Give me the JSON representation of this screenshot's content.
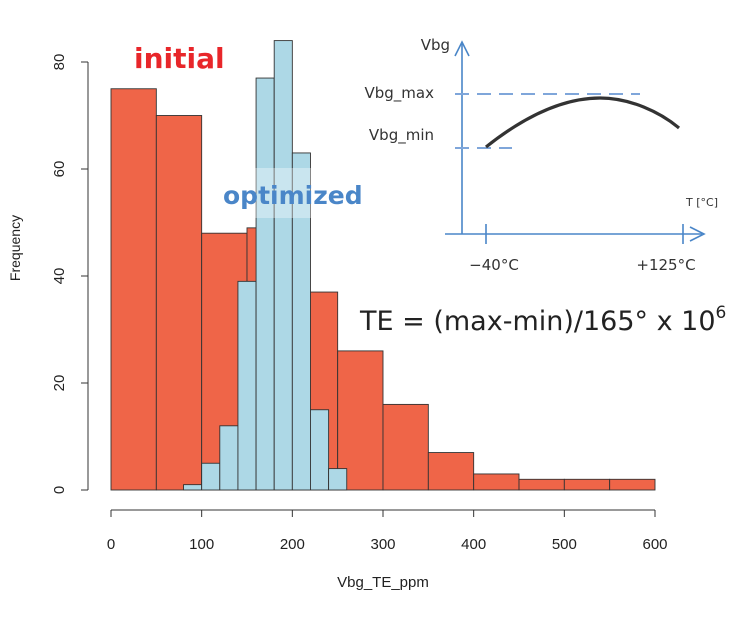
{
  "chart_data": {
    "type": "bar",
    "title": "",
    "xlabel": "Vbg_TE_ppm",
    "ylabel": "Frequency",
    "xlim": [
      0,
      600
    ],
    "ylim": [
      0,
      80
    ],
    "x_ticks": [
      0,
      100,
      200,
      300,
      400,
      500,
      600
    ],
    "y_ticks": [
      0,
      20,
      40,
      60,
      80
    ],
    "grid": false,
    "series": [
      {
        "name": "initial",
        "color": "#ef6548",
        "bins": [
          {
            "x0": 0,
            "x1": 50,
            "count": 75
          },
          {
            "x0": 50,
            "x1": 100,
            "count": 70
          },
          {
            "x0": 100,
            "x1": 150,
            "count": 48
          },
          {
            "x0": 150,
            "x1": 200,
            "count": 49
          },
          {
            "x0": 200,
            "x1": 250,
            "count": 37
          },
          {
            "x0": 250,
            "x1": 300,
            "count": 26
          },
          {
            "x0": 300,
            "x1": 350,
            "count": 16
          },
          {
            "x0": 350,
            "x1": 400,
            "count": 7
          },
          {
            "x0": 400,
            "x1": 450,
            "count": 3
          },
          {
            "x0": 450,
            "x1": 500,
            "count": 2
          },
          {
            "x0": 500,
            "x1": 550,
            "count": 2
          },
          {
            "x0": 550,
            "x1": 600,
            "count": 2
          }
        ]
      },
      {
        "name": "optimized",
        "color": "#add8e6",
        "bins": [
          {
            "x0": 80,
            "x1": 100,
            "count": 1
          },
          {
            "x0": 100,
            "x1": 120,
            "count": 5
          },
          {
            "x0": 120,
            "x1": 140,
            "count": 12
          },
          {
            "x0": 140,
            "x1": 160,
            "count": 39
          },
          {
            "x0": 160,
            "x1": 180,
            "count": 77
          },
          {
            "x0": 180,
            "x1": 200,
            "count": 84
          },
          {
            "x0": 200,
            "x1": 220,
            "count": 63
          },
          {
            "x0": 220,
            "x1": 240,
            "count": 15
          },
          {
            "x0": 240,
            "x1": 260,
            "count": 4
          }
        ]
      }
    ],
    "annotations": {
      "initial_label": "initial",
      "initial_color": "#e8262a",
      "optimized_label": "optimized",
      "optimized_color": "#4a86c8",
      "formula_prefix": "TE = (max-min)/165° x 10",
      "formula_exponent": "6"
    },
    "inset": {
      "y_label": "Vbg",
      "x_label": "T [°C]",
      "max_label": "Vbg_max",
      "min_label": "Vbg_min",
      "tick_low": "−40°C",
      "tick_high": "+125°C",
      "axis_color": "#4a86c8",
      "curve_color": "#333333"
    }
  }
}
